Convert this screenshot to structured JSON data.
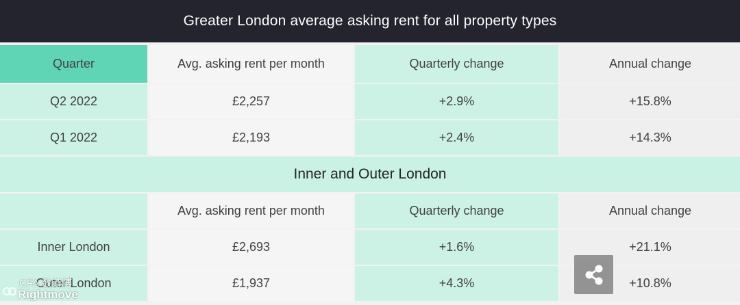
{
  "title": "Greater London average asking rent for all property types",
  "table1": {
    "headers": [
      "Quarter",
      "Avg. asking rent per month",
      "Quarterly change",
      "Annual change"
    ],
    "rows": [
      [
        "Q2 2022",
        "£2,257",
        "+2.9%",
        "+15.8%"
      ],
      [
        "Q1 2022",
        "£2,193",
        "+2.4%",
        "+14.3%"
      ]
    ]
  },
  "section_title": "Inner and Outer London",
  "table2": {
    "headers": [
      "",
      "Avg. asking rent per month",
      "Quarterly change",
      "Annual change"
    ],
    "rows": [
      [
        "Inner London",
        "£2,693",
        "+1.6%",
        "+21.1%"
      ],
      [
        "Outer London",
        "£1,937",
        "+4.3%",
        "+10.8%"
      ]
    ]
  },
  "watermark": {
    "text": "Rightmove",
    "overlay": "CFA 数诗博"
  },
  "icons": {
    "share": "share-icon"
  },
  "colors": {
    "title_bg": "#24242e",
    "header_accent": "#5fd5b6",
    "mint": "#ccf2e6"
  }
}
